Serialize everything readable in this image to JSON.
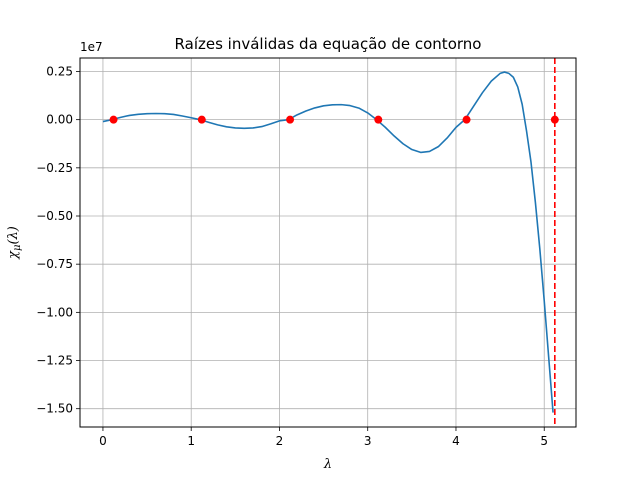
{
  "chart_data": {
    "type": "line",
    "title": "Raízes inválidas da equação de contorno",
    "xlabel": "λ",
    "ylabel": "χμ(λ)",
    "y_offset_label": "1e7",
    "xlim": [
      -0.26,
      5.36
    ],
    "ylim": [
      -1.595,
      0.32
    ],
    "grid": true,
    "x_ticks": [
      0,
      1,
      2,
      3,
      4,
      5
    ],
    "x_tick_labels": [
      "0",
      "1",
      "2",
      "3",
      "4",
      "5"
    ],
    "y_ticks": [
      0.25,
      0.0,
      -0.25,
      -0.5,
      -0.75,
      -1.0,
      -1.25,
      -1.5
    ],
    "y_tick_labels": [
      "0.25",
      "0.00",
      "−0.25",
      "−0.50",
      "−0.75",
      "−1.00",
      "−1.25",
      "−1.50"
    ],
    "series": [
      {
        "color": "#1f77b4",
        "x": [
          0.0,
          0.1,
          0.2,
          0.3,
          0.4,
          0.5,
          0.6,
          0.7,
          0.8,
          0.9,
          1.0,
          1.1,
          1.2,
          1.3,
          1.4,
          1.5,
          1.6,
          1.7,
          1.8,
          1.9,
          2.0,
          2.1,
          2.2,
          2.3,
          2.4,
          2.5,
          2.6,
          2.7,
          2.8,
          2.9,
          3.0,
          3.1,
          3.2,
          3.3,
          3.4,
          3.5,
          3.6,
          3.7,
          3.8,
          3.9,
          4.0,
          4.1,
          4.2,
          4.3,
          4.4,
          4.5,
          4.55,
          4.6,
          4.65,
          4.7,
          4.75,
          4.8,
          4.85,
          4.9,
          4.95,
          5.0,
          5.05,
          5.1
        ],
        "y": [
          -0.01,
          0.0,
          0.012,
          0.022,
          0.028,
          0.031,
          0.032,
          0.031,
          0.027,
          0.019,
          0.01,
          0.0,
          -0.014,
          -0.027,
          -0.037,
          -0.043,
          -0.045,
          -0.043,
          -0.036,
          -0.022,
          -0.006,
          0.0,
          0.025,
          0.045,
          0.061,
          0.072,
          0.077,
          0.078,
          0.073,
          0.06,
          0.035,
          0.0,
          -0.04,
          -0.085,
          -0.125,
          -0.155,
          -0.17,
          -0.165,
          -0.14,
          -0.095,
          -0.04,
          0.0,
          0.07,
          0.14,
          0.2,
          0.24,
          0.247,
          0.24,
          0.22,
          0.17,
          0.08,
          -0.06,
          -0.22,
          -0.43,
          -0.67,
          -0.94,
          -1.23,
          -1.52
        ]
      },
      {
        "color": "#ff0000",
        "x": [
          0.12,
          1.12,
          2.12,
          3.12,
          4.12,
          5.12
        ],
        "y": [
          0.0,
          0.0,
          0.0,
          0.0,
          0.0,
          0.0
        ]
      }
    ],
    "vline": {
      "x": 5.12,
      "color": "#ff0000",
      "style": "dashed"
    }
  }
}
